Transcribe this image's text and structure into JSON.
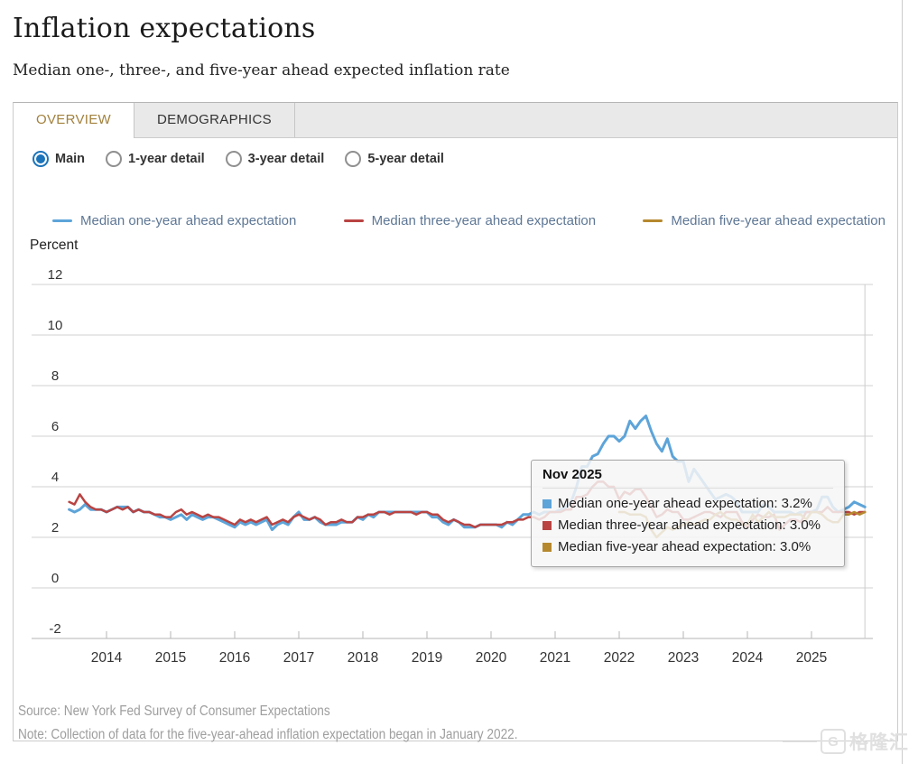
{
  "page": {
    "title": "Inflation expectations",
    "subtitle": "Median one-, three-, and five-year ahead expected inflation rate"
  },
  "tabs": [
    {
      "label": "OVERVIEW",
      "active": true
    },
    {
      "label": "DEMOGRAPHICS",
      "active": false
    }
  ],
  "controls": {
    "radios": [
      {
        "label": "Main",
        "selected": true
      },
      {
        "label": "1-year detail",
        "selected": false
      },
      {
        "label": "3-year detail",
        "selected": false
      },
      {
        "label": "5-year detail",
        "selected": false
      }
    ]
  },
  "chart_data": {
    "type": "line",
    "title": "Inflation expectations",
    "xlabel": "",
    "ylabel": "Percent",
    "ylim": [
      -2,
      12
    ],
    "yticks": [
      12,
      10,
      8,
      6,
      4,
      2,
      0,
      -2
    ],
    "xticks": [
      2014,
      2015,
      2016,
      2017,
      2018,
      2019,
      2020,
      2021,
      2022,
      2023,
      2024,
      2025
    ],
    "frequency": "monthly",
    "grid": "horizontal",
    "legend_position": "top",
    "colors": {
      "one_year": "#5da4d9",
      "three_year": "#b94442",
      "five_year": "#b6882e"
    },
    "series": [
      {
        "name": "Median one-year ahead expectation",
        "color": "#5da4d9",
        "start": "2013-06",
        "end": "2025-11",
        "values": [
          3.1,
          3.0,
          3.1,
          3.3,
          3.1,
          3.1,
          3.1,
          3.0,
          3.1,
          3.2,
          3.2,
          3.2,
          3.0,
          3.1,
          3.0,
          3.0,
          2.9,
          2.8,
          2.8,
          2.7,
          2.8,
          2.9,
          2.7,
          2.9,
          2.8,
          2.7,
          2.8,
          2.8,
          2.7,
          2.6,
          2.5,
          2.4,
          2.6,
          2.5,
          2.6,
          2.5,
          2.6,
          2.7,
          2.3,
          2.5,
          2.6,
          2.5,
          2.8,
          3.0,
          2.7,
          2.7,
          2.8,
          2.6,
          2.5,
          2.5,
          2.5,
          2.6,
          2.6,
          2.6,
          2.8,
          2.7,
          2.9,
          2.8,
          3.0,
          3.0,
          3.0,
          3.0,
          3.0,
          3.0,
          3.0,
          3.0,
          3.0,
          3.0,
          2.8,
          2.8,
          2.6,
          2.5,
          2.7,
          2.6,
          2.4,
          2.4,
          2.4,
          2.5,
          2.5,
          2.5,
          2.5,
          2.4,
          2.6,
          2.5,
          2.7,
          2.9,
          2.9,
          3.0,
          2.9,
          3.0,
          3.0,
          3.0,
          3.1,
          3.2,
          3.4,
          4.0,
          4.8,
          4.8,
          5.2,
          5.3,
          5.7,
          6.0,
          6.0,
          5.8,
          6.0,
          6.6,
          6.3,
          6.6,
          6.8,
          6.2,
          5.7,
          5.4,
          5.9,
          5.2,
          5.0,
          5.0,
          4.2,
          4.7,
          4.4,
          4.1,
          3.8,
          3.5,
          3.6,
          3.7,
          3.6,
          3.4,
          3.0,
          3.0,
          3.0,
          3.0,
          3.3,
          3.2,
          3.0,
          3.0,
          3.0,
          3.0,
          2.9,
          3.0,
          3.0,
          3.0,
          3.1,
          3.6,
          3.6,
          3.2,
          3.0,
          3.1,
          3.2,
          3.4,
          3.3,
          3.2
        ]
      },
      {
        "name": "Median three-year ahead expectation",
        "color": "#b94442",
        "start": "2013-06",
        "end": "2025-11",
        "values": [
          3.4,
          3.3,
          3.7,
          3.4,
          3.2,
          3.1,
          3.1,
          3.0,
          3.1,
          3.2,
          3.1,
          3.2,
          3.0,
          3.1,
          3.0,
          3.0,
          2.9,
          2.9,
          2.8,
          2.8,
          3.0,
          3.1,
          2.9,
          3.0,
          2.9,
          2.8,
          2.9,
          2.8,
          2.8,
          2.7,
          2.6,
          2.5,
          2.7,
          2.6,
          2.7,
          2.6,
          2.7,
          2.8,
          2.5,
          2.6,
          2.7,
          2.6,
          2.8,
          2.9,
          2.8,
          2.7,
          2.8,
          2.7,
          2.5,
          2.6,
          2.6,
          2.7,
          2.6,
          2.6,
          2.8,
          2.8,
          2.9,
          2.9,
          3.0,
          3.0,
          2.9,
          3.0,
          3.0,
          3.0,
          3.0,
          2.9,
          3.0,
          3.0,
          2.9,
          2.9,
          2.7,
          2.6,
          2.7,
          2.6,
          2.5,
          2.5,
          2.4,
          2.5,
          2.5,
          2.5,
          2.5,
          2.5,
          2.6,
          2.6,
          2.7,
          2.7,
          2.8,
          2.8,
          2.7,
          2.8,
          3.0,
          3.0,
          3.0,
          3.1,
          3.1,
          3.6,
          3.6,
          3.7,
          4.0,
          4.2,
          4.2,
          4.0,
          4.0,
          3.5,
          3.8,
          3.7,
          3.9,
          3.9,
          3.6,
          3.2,
          2.8,
          2.9,
          3.1,
          3.0,
          3.0,
          2.7,
          2.7,
          2.8,
          2.9,
          3.0,
          3.0,
          2.9,
          2.8,
          3.0,
          3.0,
          3.0,
          2.6,
          2.4,
          2.7,
          2.9,
          2.8,
          2.8,
          2.9,
          2.3,
          2.5,
          2.7,
          2.7,
          2.6,
          3.0,
          3.0,
          3.0,
          3.0,
          3.2,
          3.0,
          3.0,
          3.0,
          3.0,
          2.9,
          3.0,
          3.0
        ]
      },
      {
        "name": "Median five-year ahead expectation",
        "color": "#b6882e",
        "start": "2022-01",
        "end": "2025-11",
        "values": [
          3.0,
          3.0,
          2.9,
          2.9,
          2.9,
          2.8,
          2.3,
          2.0,
          2.2,
          2.4,
          2.3,
          2.4,
          2.5,
          2.6,
          2.5,
          2.6,
          2.7,
          2.7,
          2.9,
          3.0,
          2.8,
          2.7,
          2.7,
          2.5,
          2.5,
          2.9,
          2.6,
          2.8,
          3.0,
          2.8,
          2.8,
          2.8,
          2.9,
          2.9,
          2.9,
          2.7,
          3.0,
          3.0,
          2.9,
          2.7,
          2.6,
          2.6,
          2.9,
          2.9,
          3.0,
          2.9,
          3.0
        ]
      }
    ]
  },
  "tooltip": {
    "title": "Nov 2025",
    "rows": [
      {
        "label": "Median one-year ahead expectation",
        "value": "3.2%"
      },
      {
        "label": "Median three-year ahead expectation",
        "value": "3.0%"
      },
      {
        "label": "Median five-year ahead expectation",
        "value": "3.0%"
      }
    ]
  },
  "footer": {
    "source": "Source: New York Fed Survey of Consumer Expectations",
    "note": "Note: Collection of data for the five-year-ahead inflation expectation began in January 2022."
  },
  "watermark": {
    "logo_letter": "G",
    "text": "格隆汇"
  }
}
